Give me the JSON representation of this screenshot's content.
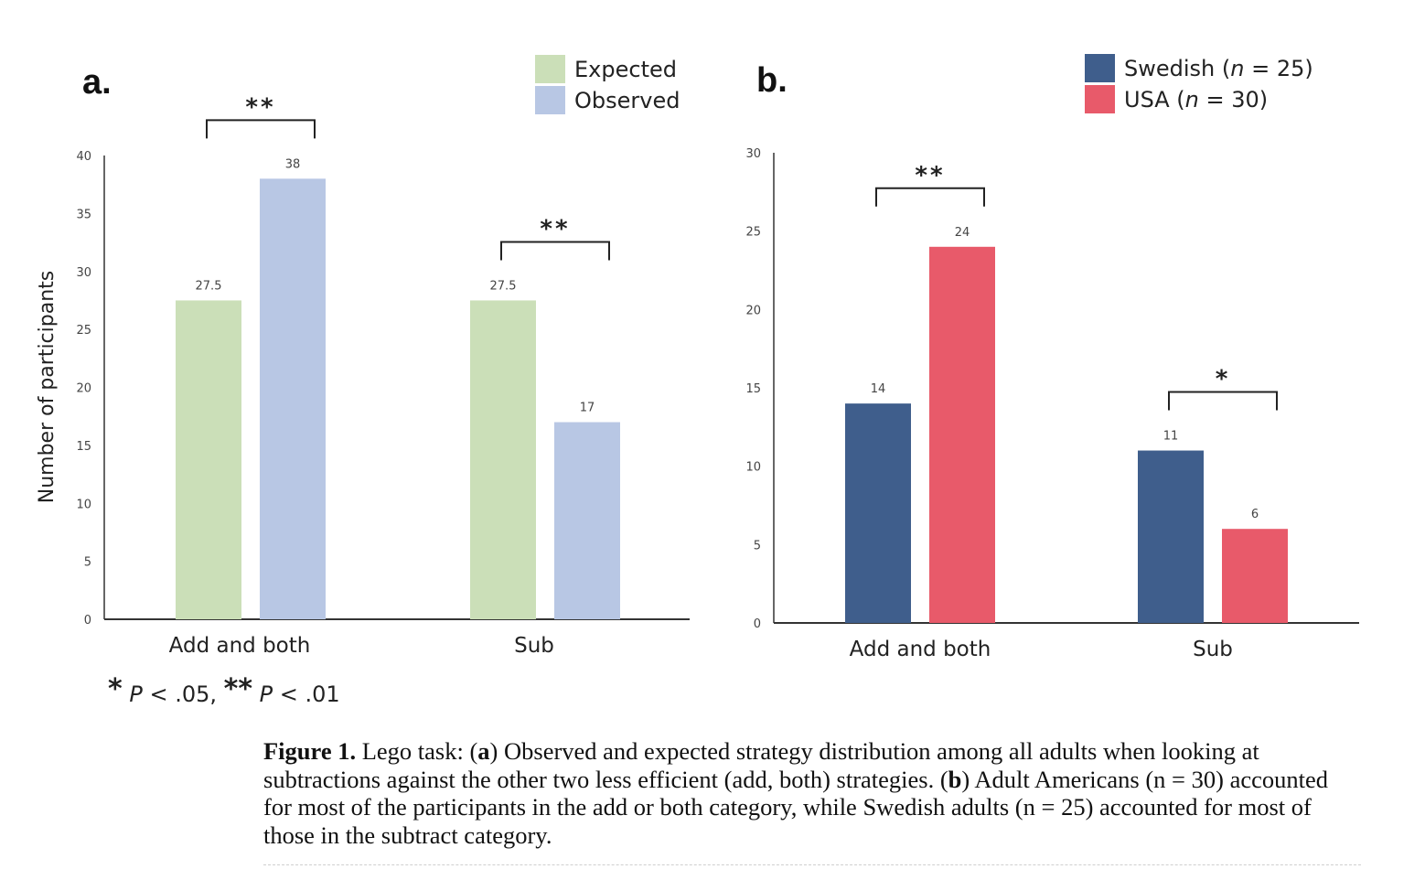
{
  "chart_data": [
    {
      "panel": "a.",
      "type": "bar",
      "ylabel": "Number of participants",
      "ylim": [
        0,
        40
      ],
      "yticks": [
        0,
        5,
        10,
        15,
        20,
        25,
        30,
        35,
        40
      ],
      "categories": [
        "Add and both",
        "Sub"
      ],
      "series": [
        {
          "name": "Expected",
          "values": [
            27.5,
            27.5
          ],
          "labels": [
            "27.5",
            "27.5"
          ],
          "color": "#cbdfb8"
        },
        {
          "name": "Observed",
          "values": [
            38,
            17
          ],
          "labels": [
            "38",
            "17"
          ],
          "color": "#b8c7e4"
        }
      ],
      "legend_placement": "top-right",
      "significance": [
        {
          "category": "Add and both",
          "stars": "**"
        },
        {
          "category": "Sub",
          "stars": "**"
        }
      ]
    },
    {
      "panel": "b.",
      "type": "bar",
      "ylim": [
        0,
        30
      ],
      "yticks": [
        0,
        5,
        10,
        15,
        20,
        25,
        30
      ],
      "categories": [
        "Add and both",
        "Sub"
      ],
      "series": [
        {
          "name_prefix": "Swedish (",
          "name_italic": "n",
          "name_suffix": " = 25)",
          "values": [
            14,
            11
          ],
          "labels": [
            "14",
            "11"
          ],
          "color": "#3f5e8c"
        },
        {
          "name_prefix": "USA (",
          "name_italic": "n",
          "name_suffix": " = 30)",
          "values": [
            24,
            6
          ],
          "labels": [
            "24",
            "6"
          ],
          "color": "#e85a6a"
        }
      ],
      "legend_placement": "top-right",
      "significance": [
        {
          "category": "Add and both",
          "stars": "**"
        },
        {
          "category": "Sub",
          "stars": "*"
        }
      ]
    }
  ],
  "footnote": {
    "star1": "*",
    "text1": "P",
    "text1b": " < .05, ",
    "star2": "**",
    "text2": "P",
    "text2b": " < .01"
  },
  "caption": {
    "label": "Figure 1.",
    "text_1": "  Lego task: (",
    "bold_a": "a",
    "text_2": ") Observed and expected strategy distribution among all adults when looking at subtractions against the other two less efficient (add, both) strategies. (",
    "bold_b": "b",
    "text_3": ") Adult Americans (n = 30) accounted for most of the participants in the add or both category, while Swedish adults (n = 25) accounted for most of those in the subtract category."
  }
}
